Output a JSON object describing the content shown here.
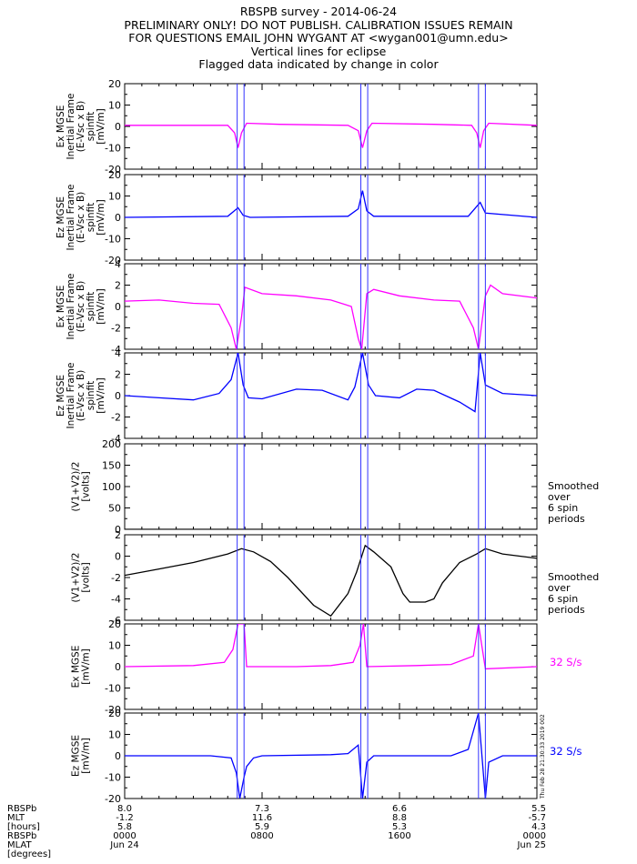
{
  "header": {
    "line1": "RBSPB survey - 2014-06-24",
    "line2": "PRELIMINARY ONLY! DO NOT PUBLISH. CALIBRATION ISSUES REMAIN",
    "line3": "FOR QUESTIONS EMAIL JOHN WYGANT AT <wygan001@umn.edu>",
    "line4": "Vertical lines for eclipse",
    "line5": "Flagged data indicated by change in color"
  },
  "colors": {
    "magenta": "#ff00ff",
    "blue": "#0000ff",
    "black": "#000000",
    "eclipse": "#3333ff"
  },
  "eclipse_times": [
    6.55,
    6.95,
    13.75,
    14.15,
    20.6,
    21.0
  ],
  "chart_data": {
    "type": "line",
    "xlim": [
      0,
      24
    ],
    "panels": [
      {
        "id": "ex1",
        "ylabel": [
          "Ex MGSE",
          "Inertial Frame",
          "(E-Vsc x B)",
          "spinfit",
          "[mV/m]"
        ],
        "ylim": [
          -20,
          20
        ],
        "yticks": [
          "20",
          "10",
          "0",
          "-10",
          "-20"
        ],
        "color": "magenta",
        "series": [
          [
            0,
            0.5
          ],
          [
            6,
            0.5
          ],
          [
            6.4,
            -3
          ],
          [
            6.6,
            -10
          ],
          [
            6.8,
            -3
          ],
          [
            7.1,
            1.5
          ],
          [
            9,
            1
          ],
          [
            13,
            0.5
          ],
          [
            13.6,
            -2
          ],
          [
            13.85,
            -10
          ],
          [
            14.1,
            -2
          ],
          [
            14.4,
            1.5
          ],
          [
            18,
            1
          ],
          [
            20.2,
            0.5
          ],
          [
            20.5,
            -3
          ],
          [
            20.7,
            -10
          ],
          [
            20.9,
            -2
          ],
          [
            21.2,
            1.5
          ],
          [
            24,
            0.5
          ]
        ],
        "label": ""
      },
      {
        "id": "ez1",
        "ylabel": [
          "Ez MGSE",
          "Inertial Frame",
          "(E-Vsc x B)",
          "spinfit",
          "[mV/m]"
        ],
        "ylim": [
          -20,
          20
        ],
        "yticks": [
          "20",
          "10",
          "0",
          "-10",
          "-20"
        ],
        "color": "blue",
        "series": [
          [
            0,
            0
          ],
          [
            6,
            0.5
          ],
          [
            6.6,
            4.5
          ],
          [
            6.9,
            1
          ],
          [
            7.3,
            0
          ],
          [
            13,
            0.5
          ],
          [
            13.6,
            4
          ],
          [
            13.85,
            12.5
          ],
          [
            14.1,
            3
          ],
          [
            14.5,
            0.5
          ],
          [
            20,
            0.5
          ],
          [
            20.7,
            7
          ],
          [
            21,
            2
          ],
          [
            24,
            0
          ]
        ],
        "label": ""
      },
      {
        "id": "ex2",
        "ylabel": [
          "Ex MGSE",
          "Inertial Frame",
          "(E-Vsc x B)",
          "spinfit",
          "[mV/m]"
        ],
        "ylim": [
          -4,
          4
        ],
        "yticks": [
          "4",
          "2",
          "0",
          "-2",
          "-4"
        ],
        "color": "magenta",
        "series": [
          [
            0,
            0.5
          ],
          [
            2,
            0.6
          ],
          [
            4,
            0.3
          ],
          [
            5.5,
            0.2
          ],
          [
            6.2,
            -2
          ],
          [
            6.5,
            -4
          ],
          [
            6.8,
            -1
          ],
          [
            7.0,
            1.8
          ],
          [
            8,
            1.2
          ],
          [
            10,
            1
          ],
          [
            12,
            0.6
          ],
          [
            13.2,
            0
          ],
          [
            13.6,
            -3
          ],
          [
            13.8,
            -4
          ],
          [
            14.1,
            1.2
          ],
          [
            14.5,
            1.6
          ],
          [
            16,
            1
          ],
          [
            18,
            0.6
          ],
          [
            19.5,
            0.5
          ],
          [
            20.3,
            -2
          ],
          [
            20.6,
            -4
          ],
          [
            21,
            1
          ],
          [
            21.3,
            2
          ],
          [
            22,
            1.2
          ],
          [
            24,
            0.8
          ]
        ],
        "label": ""
      },
      {
        "id": "ez2",
        "ylabel": [
          "Ez MGSE",
          "Inertial Frame",
          "(E-Vsc x B)",
          "spinfit",
          "[mV/m]"
        ],
        "ylim": [
          -4,
          4
        ],
        "yticks": [
          "4",
          "2",
          "0",
          "-2",
          "-4"
        ],
        "color": "blue",
        "series": [
          [
            0,
            0
          ],
          [
            2,
            -0.2
          ],
          [
            4,
            -0.4
          ],
          [
            5.5,
            0.2
          ],
          [
            6.2,
            1.5
          ],
          [
            6.6,
            4
          ],
          [
            6.9,
            1
          ],
          [
            7.2,
            -0.2
          ],
          [
            8,
            -0.3
          ],
          [
            10,
            0.6
          ],
          [
            11.5,
            0.5
          ],
          [
            13,
            -0.4
          ],
          [
            13.4,
            0.8
          ],
          [
            13.85,
            4
          ],
          [
            14.2,
            1
          ],
          [
            14.6,
            0
          ],
          [
            16,
            -0.2
          ],
          [
            17,
            0.6
          ],
          [
            18,
            0.5
          ],
          [
            19.5,
            -0.6
          ],
          [
            20.4,
            -1.5
          ],
          [
            20.7,
            4
          ],
          [
            21,
            1
          ],
          [
            22,
            0.2
          ],
          [
            24,
            0
          ]
        ],
        "label": ""
      },
      {
        "id": "v1",
        "ylabel": [
          "(V1+V2)/2",
          "[volts]"
        ],
        "ylim": [
          0,
          200
        ],
        "yticks": [
          "200",
          "150",
          "100",
          "50",
          "0"
        ],
        "color": "black",
        "series": [
          [
            0,
            0
          ],
          [
            24,
            0
          ]
        ],
        "label": [
          "Smoothed",
          "over",
          "6 spin",
          "periods"
        ]
      },
      {
        "id": "v2",
        "ylabel": [
          "(V1+V2)/2",
          "[volts]"
        ],
        "ylim": [
          -6,
          2
        ],
        "yticks": [
          "2",
          "0",
          "-2",
          "-4",
          "-6"
        ],
        "color": "black",
        "series": [
          [
            0,
            -1.8
          ],
          [
            2,
            -1.2
          ],
          [
            4,
            -0.6
          ],
          [
            6,
            0.2
          ],
          [
            6.8,
            0.7
          ],
          [
            7.5,
            0.4
          ],
          [
            8.5,
            -0.5
          ],
          [
            9.5,
            -2
          ],
          [
            11,
            -4.6
          ],
          [
            12,
            -5.6
          ],
          [
            13,
            -3.5
          ],
          [
            13.5,
            -1.5
          ],
          [
            14,
            1
          ],
          [
            14.5,
            0.4
          ],
          [
            15.5,
            -1
          ],
          [
            16.2,
            -3.5
          ],
          [
            16.6,
            -4.3
          ],
          [
            17.5,
            -4.3
          ],
          [
            18,
            -4.0
          ],
          [
            18.5,
            -2.5
          ],
          [
            19.5,
            -0.6
          ],
          [
            20.5,
            0.2
          ],
          [
            21,
            0.7
          ],
          [
            22,
            0.2
          ],
          [
            24,
            -0.2
          ]
        ],
        "label": [
          "Smoothed",
          "over",
          "6 spin",
          "periods"
        ]
      },
      {
        "id": "ex3",
        "ylabel": [
          "Ex MGSE",
          "[mV/m]"
        ],
        "ylim": [
          -20,
          20
        ],
        "yticks": [
          "20",
          "10",
          "0",
          "-10",
          "-20"
        ],
        "color": "magenta",
        "series": [
          [
            0,
            0
          ],
          [
            4,
            0.5
          ],
          [
            5.8,
            2
          ],
          [
            6.3,
            8
          ],
          [
            6.6,
            20
          ],
          [
            6.95,
            20
          ],
          [
            7.1,
            0
          ],
          [
            10,
            0
          ],
          [
            12,
            0.5
          ],
          [
            13.3,
            2
          ],
          [
            13.7,
            10
          ],
          [
            13.9,
            20
          ],
          [
            14.1,
            0
          ],
          [
            17,
            0.5
          ],
          [
            19,
            1
          ],
          [
            20.3,
            5
          ],
          [
            20.6,
            20
          ],
          [
            21,
            -1
          ],
          [
            24,
            0
          ]
        ],
        "label": "32 S/s"
      },
      {
        "id": "ez3",
        "ylabel": [
          "Ez MGSE",
          "[mV/m]"
        ],
        "ylim": [
          -20,
          20
        ],
        "yticks": [
          "20",
          "10",
          "0",
          "-10",
          "-20"
        ],
        "color": "blue",
        "series": [
          [
            0,
            0
          ],
          [
            5,
            0
          ],
          [
            6.2,
            -1
          ],
          [
            6.5,
            -8
          ],
          [
            6.7,
            -20
          ],
          [
            6.95,
            -10
          ],
          [
            7.1,
            -5
          ],
          [
            7.5,
            -1
          ],
          [
            8,
            0
          ],
          [
            12,
            0.5
          ],
          [
            13,
            1
          ],
          [
            13.6,
            5
          ],
          [
            13.85,
            -20
          ],
          [
            14.1,
            -3
          ],
          [
            14.5,
            0
          ],
          [
            19,
            0
          ],
          [
            20,
            3
          ],
          [
            20.6,
            20
          ],
          [
            21,
            -20
          ],
          [
            21.2,
            -3
          ],
          [
            22,
            0
          ],
          [
            24,
            0
          ]
        ],
        "label": "32 S/s"
      }
    ],
    "ephemeris": {
      "row_labels": [
        "RBSPb",
        "MLT",
        "[hours]",
        "RBSPb",
        "MLAT",
        "[degrees]"
      ],
      "columns": [
        {
          "x": 0,
          "mlt": "8.0",
          "mlat": "-1.2",
          "l": "5.8",
          "time": "0000",
          "date": "Jun 24"
        },
        {
          "x": 8,
          "mlt": "7.3",
          "mlat": "11.6",
          "l": "5.9",
          "time": "0800",
          "date": ""
        },
        {
          "x": 16,
          "mlt": "6.6",
          "mlat": "8.8",
          "l": "5.3",
          "time": "1600",
          "date": ""
        },
        {
          "x": 24,
          "mlt": "5.5",
          "mlat": "-5.7",
          "l": "4.3",
          "time": "0000",
          "date": "Jun 25"
        }
      ]
    },
    "stamp": "Thu Feb 28 21:30:33 2019 002"
  }
}
